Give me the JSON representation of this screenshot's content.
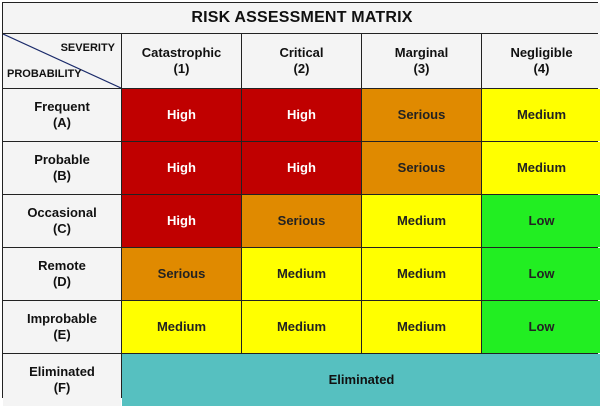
{
  "title": "RISK ASSESSMENT MATRIX",
  "corner": {
    "severity_label": "SEVERITY",
    "probability_label": "PROBABILITY"
  },
  "columns": [
    {
      "name": "Catastrophic",
      "code": "(1)"
    },
    {
      "name": "Critical",
      "code": "(2)"
    },
    {
      "name": "Marginal",
      "code": "(3)"
    },
    {
      "name": "Negligible",
      "code": "(4)"
    }
  ],
  "rows": [
    {
      "name": "Frequent",
      "code": "(A)",
      "cells": [
        "High",
        "High",
        "Serious",
        "Medium"
      ]
    },
    {
      "name": "Probable",
      "code": "(B)",
      "cells": [
        "High",
        "High",
        "Serious",
        "Medium"
      ]
    },
    {
      "name": "Occasional",
      "code": "(C)",
      "cells": [
        "High",
        "Serious",
        "Medium",
        "Low"
      ]
    },
    {
      "name": "Remote",
      "code": "(D)",
      "cells": [
        "Serious",
        "Medium",
        "Medium",
        "Low"
      ]
    },
    {
      "name": "Improbable",
      "code": "(E)",
      "cells": [
        "Medium",
        "Medium",
        "Medium",
        "Low"
      ]
    }
  ],
  "eliminated_row": {
    "name": "Eliminated",
    "code": "(F)",
    "band_label": "Eliminated"
  },
  "colors": {
    "High": "#c00000",
    "Serious": "#e08a00",
    "Medium": "#ffff00",
    "Low": "#22ee22",
    "Eliminated": "#56c0c0",
    "header_bg": "#f4f4f4",
    "grid_line": "#222222"
  }
}
